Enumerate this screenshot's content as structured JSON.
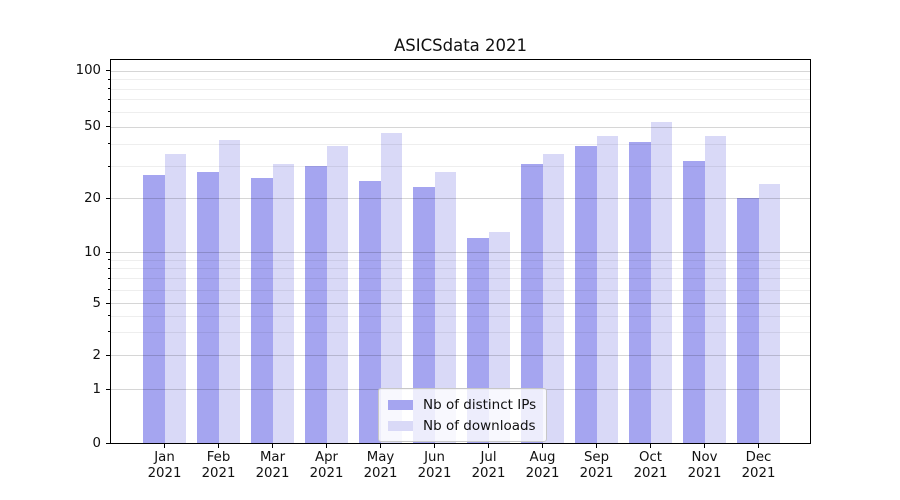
{
  "chart_data": {
    "type": "bar",
    "title": "ASICSdata 2021",
    "x_labels": [
      "Jan",
      "Feb",
      "Mar",
      "Apr",
      "May",
      "Jun",
      "Jul",
      "Aug",
      "Sep",
      "Oct",
      "Nov",
      "Dec"
    ],
    "x_year": "2021",
    "series": [
      {
        "name": "Nb of distinct IPs",
        "color": "#a5a5f0",
        "values": [
          27,
          28,
          26,
          30,
          25,
          23,
          12,
          31,
          39,
          41,
          32,
          20
        ]
      },
      {
        "name": "Nb of downloads",
        "color": "#d9d9f7",
        "values": [
          35,
          42,
          31,
          39,
          46,
          28,
          13,
          35,
          44,
          53,
          44,
          24
        ]
      }
    ],
    "yscale": "symlog",
    "ylim": [
      0,
      115
    ],
    "yticks": [
      0,
      1,
      2,
      5,
      10,
      20,
      50,
      100
    ],
    "yticks_minor": [
      3,
      4,
      6,
      7,
      8,
      9,
      30,
      40,
      60,
      70,
      80,
      90
    ],
    "grid": "both",
    "legend": {
      "position": "lower center"
    }
  }
}
